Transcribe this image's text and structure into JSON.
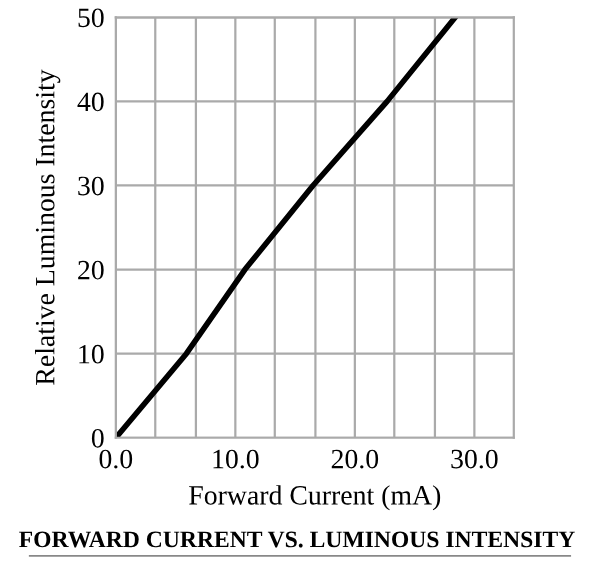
{
  "chart_data": {
    "type": "line",
    "title": "FORWARD CURRENT VS. LUMINOUS INTENSITY",
    "xlabel": "Forward Current (mA)",
    "ylabel": "Relative Luminous Intensity",
    "series": [
      {
        "color": "#000000",
        "x": [
          0,
          5.9,
          10.8,
          16.5,
          22.7,
          28.4
        ],
        "values": [
          0,
          10,
          20,
          30,
          40,
          50
        ]
      }
    ],
    "xlim": [
      0,
      33.3
    ],
    "ylim": [
      0,
      50
    ],
    "xticks": [
      {
        "value": 0,
        "label": "0.0"
      },
      {
        "value": 3.3,
        "label": null
      },
      {
        "value": 6.7,
        "label": null
      },
      {
        "value": 10,
        "label": "10.0"
      },
      {
        "value": 13.3,
        "label": null
      },
      {
        "value": 16.7,
        "label": null
      },
      {
        "value": 20,
        "label": "20.0"
      },
      {
        "value": 23.3,
        "label": null
      },
      {
        "value": 26.7,
        "label": null
      },
      {
        "value": 30,
        "label": "30.0"
      }
    ],
    "yticks": [
      0,
      10,
      20,
      30,
      40,
      50
    ],
    "grid": true,
    "marker": "none",
    "line_style": "solid"
  }
}
